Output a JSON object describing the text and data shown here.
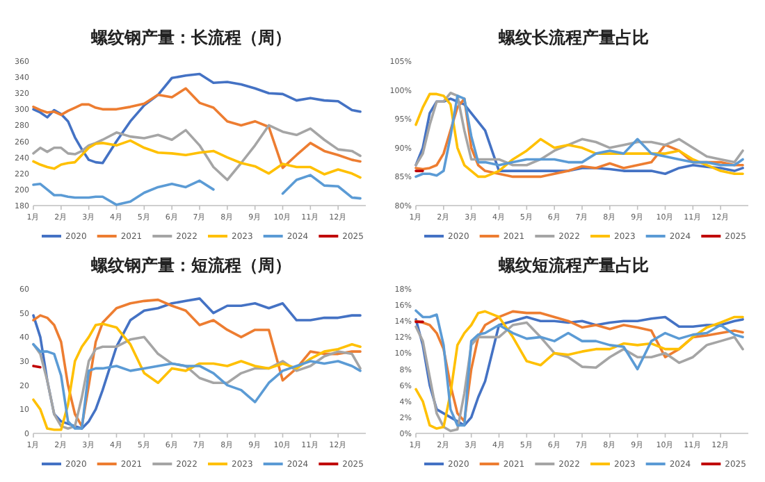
{
  "chart_data": [
    {
      "type": "line",
      "title": "螺纹钢产量：长流程（周）",
      "legend": "bottom",
      "x": [
        1,
        1.25,
        1.5,
        1.75,
        2,
        2.25,
        2.5,
        2.75,
        3,
        3.25,
        3.5,
        4,
        4.5,
        5,
        5.5,
        6,
        6.5,
        7,
        7.5,
        8,
        8.5,
        9,
        9.5,
        10,
        10.5,
        11,
        11.5,
        12,
        12.5,
        12.8
      ],
      "xlim": [
        1,
        13
      ],
      "xticks": [
        {
          "value": 1,
          "label": "1月"
        },
        {
          "value": 2,
          "label": "2月"
        },
        {
          "value": 3,
          "label": "3月"
        },
        {
          "value": 4,
          "label": "4月"
        },
        {
          "value": 5,
          "label": "5月"
        },
        {
          "value": 6,
          "label": "6月"
        },
        {
          "value": 7,
          "label": "7月"
        },
        {
          "value": 8,
          "label": "8月"
        },
        {
          "value": 9,
          "label": "9月"
        },
        {
          "value": 10,
          "label": "10月"
        },
        {
          "value": 11,
          "label": "11月"
        },
        {
          "value": 12,
          "label": "12月"
        }
      ],
      "ylim": [
        180,
        360
      ],
      "yticks": [
        180,
        200,
        220,
        240,
        260,
        280,
        300,
        320,
        340,
        360
      ],
      "series": [
        {
          "name": "2020",
          "color": "#4472c4",
          "values": [
            300,
            296,
            290,
            299,
            294,
            285,
            265,
            250,
            237,
            234,
            233,
            260,
            285,
            305,
            318,
            339,
            342,
            344,
            333,
            334,
            331,
            326,
            320,
            319,
            311,
            314,
            311,
            310,
            299,
            297
          ]
        },
        {
          "name": "2021",
          "color": "#ed7d31",
          "values": [
            303,
            299,
            296,
            297,
            293,
            298,
            302,
            306,
            306,
            302,
            300,
            300,
            303,
            307,
            318,
            315,
            326,
            308,
            302,
            285,
            280,
            285,
            278,
            227,
            243,
            258,
            248,
            243,
            237,
            235
          ]
        },
        {
          "name": "2022",
          "color": "#a5a5a5",
          "values": [
            245,
            252,
            247,
            252,
            252,
            245,
            244,
            248,
            255,
            258,
            262,
            271,
            266,
            264,
            268,
            262,
            274,
            255,
            228,
            212,
            233,
            255,
            280,
            272,
            268,
            276,
            262,
            250,
            248,
            242
          ]
        },
        {
          "name": "2023",
          "color": "#ffc000",
          "values": [
            235,
            231,
            228,
            226,
            231,
            233,
            234,
            243,
            252,
            257,
            258,
            255,
            261,
            252,
            246,
            245,
            243,
            246,
            248,
            240,
            233,
            229,
            220,
            232,
            228,
            228,
            219,
            225,
            220,
            215
          ]
        },
        {
          "name": "2024",
          "color": "#5b9bd5",
          "values": [
            206,
            207,
            200,
            193,
            193,
            191,
            190,
            190,
            190,
            191,
            191,
            181,
            185,
            196,
            203,
            207,
            203,
            211,
            200,
            null,
            null,
            null,
            null,
            195,
            212,
            218,
            205,
            204,
            190,
            189
          ]
        },
        {
          "name": "2025",
          "color": "#c00000",
          "values": [
            null,
            null,
            null,
            null,
            null,
            null,
            null,
            null,
            null,
            null,
            null,
            null,
            null,
            null,
            null,
            null,
            null,
            null,
            null,
            null,
            null,
            null,
            null,
            null,
            null,
            null,
            null,
            null,
            null,
            null
          ]
        }
      ]
    },
    {
      "type": "line",
      "title": "螺纹长流程产量占比",
      "legend": "bottom",
      "x": [
        1,
        1.25,
        1.5,
        1.75,
        2,
        2.25,
        2.5,
        2.75,
        3,
        3.25,
        3.5,
        4,
        4.5,
        5,
        5.5,
        6,
        6.5,
        7,
        7.5,
        8,
        8.5,
        9,
        9.5,
        10,
        10.5,
        11,
        11.5,
        12,
        12.5,
        12.8
      ],
      "xlim": [
        1,
        13
      ],
      "xticks": [
        {
          "value": 1,
          "label": "1月"
        },
        {
          "value": 2,
          "label": "2月"
        },
        {
          "value": 3,
          "label": "3月"
        },
        {
          "value": 4,
          "label": "4月"
        },
        {
          "value": 5,
          "label": "5月"
        },
        {
          "value": 6,
          "label": "6月"
        },
        {
          "value": 7,
          "label": "7月"
        },
        {
          "value": 8,
          "label": "8月"
        },
        {
          "value": 9,
          "label": "9月"
        },
        {
          "value": 10,
          "label": "10月"
        },
        {
          "value": 11,
          "label": "11月"
        },
        {
          "value": 12,
          "label": "12月"
        }
      ],
      "ylim": [
        80,
        105
      ],
      "yticks": [
        {
          "value": 80,
          "label": "80%"
        },
        {
          "value": 85,
          "label": "85%"
        },
        {
          "value": 90,
          "label": "90%"
        },
        {
          "value": 95,
          "label": "95%"
        },
        {
          "value": 100,
          "label": "100%"
        },
        {
          "value": 105,
          "label": "105%"
        }
      ],
      "series": [
        {
          "name": "2020",
          "color": "#4472c4",
          "values": [
            87,
            90,
            96,
            98,
            98,
            98.5,
            98,
            97.5,
            96,
            94.5,
            93,
            86,
            86,
            86,
            86,
            86,
            86,
            86.5,
            86.5,
            86.3,
            86,
            86,
            86,
            85.5,
            86.5,
            87,
            86.7,
            86.5,
            86,
            86.5
          ]
        },
        {
          "name": "2021",
          "color": "#ed7d31",
          "values": [
            86.5,
            86.3,
            86.5,
            87,
            89,
            93,
            97,
            98.5,
            90,
            87,
            86,
            85.5,
            85,
            85,
            85,
            85.5,
            86,
            86.8,
            86.5,
            87.3,
            86.5,
            87,
            87.5,
            90.5,
            89.5,
            87.5,
            87.5,
            87.5,
            87,
            87
          ]
        },
        {
          "name": "2022",
          "color": "#a5a5a5",
          "values": [
            87,
            89,
            94,
            98,
            98,
            99.5,
            99,
            93,
            88,
            88,
            88,
            88,
            87,
            87,
            88,
            89.5,
            90.5,
            91.5,
            91,
            90,
            90.5,
            91,
            91,
            90.5,
            91.5,
            90,
            88.5,
            88,
            87.5,
            89.5
          ]
        },
        {
          "name": "2023",
          "color": "#ffc000",
          "values": [
            94,
            97,
            99.3,
            99.3,
            99,
            97.5,
            90,
            87,
            86,
            85,
            85,
            86,
            88,
            89.5,
            91.5,
            90,
            90.5,
            90,
            89,
            89,
            89,
            89,
            89,
            89,
            89.5,
            88,
            87,
            86,
            85.5,
            85.5
          ]
        },
        {
          "name": "2024",
          "color": "#5b9bd5",
          "values": [
            85,
            85.5,
            85.5,
            85.2,
            86,
            92,
            99,
            98.5,
            92,
            87.5,
            87.5,
            87,
            87.5,
            88,
            88,
            88,
            87.5,
            87.5,
            89,
            89.5,
            89,
            91.5,
            89,
            88.5,
            88,
            87.5,
            87.5,
            87,
            87,
            88
          ]
        },
        {
          "name": "2025",
          "color": "#c00000",
          "values": [
            86,
            86,
            null,
            null,
            null,
            null,
            null,
            null,
            null,
            null,
            null,
            null,
            null,
            null,
            null,
            null,
            null,
            null,
            null,
            null,
            null,
            null,
            null,
            null,
            null,
            null,
            null,
            null,
            null,
            null
          ]
        }
      ]
    },
    {
      "type": "line",
      "title": "螺纹钢产量：短流程（周）",
      "legend": "bottom",
      "x": [
        1,
        1.25,
        1.5,
        1.75,
        2,
        2.25,
        2.5,
        2.75,
        3,
        3.25,
        3.5,
        4,
        4.5,
        5,
        5.5,
        6,
        6.5,
        7,
        7.5,
        8,
        8.5,
        9,
        9.5,
        10,
        10.5,
        11,
        11.5,
        12,
        12.5,
        12.8
      ],
      "xlim": [
        1,
        13
      ],
      "xticks": [
        {
          "value": 1,
          "label": "1月"
        },
        {
          "value": 2,
          "label": "2月"
        },
        {
          "value": 3,
          "label": "3月"
        },
        {
          "value": 4,
          "label": "4月"
        },
        {
          "value": 5,
          "label": "5月"
        },
        {
          "value": 6,
          "label": "6月"
        },
        {
          "value": 7,
          "label": "7月"
        },
        {
          "value": 8,
          "label": "8月"
        },
        {
          "value": 9,
          "label": "9月"
        },
        {
          "value": 10,
          "label": "10月"
        },
        {
          "value": 11,
          "label": "11月"
        },
        {
          "value": 12,
          "label": "12月"
        }
      ],
      "ylim": [
        0,
        60
      ],
      "yticks": [
        0,
        10,
        20,
        30,
        40,
        50,
        60
      ],
      "series": [
        {
          "name": "2020",
          "color": "#4472c4",
          "values": [
            49,
            40,
            22,
            8,
            5,
            4,
            3,
            2,
            5,
            10,
            18,
            36,
            47,
            51,
            52,
            54,
            55,
            56,
            50,
            53,
            53,
            54,
            52,
            54,
            47,
            47,
            48,
            48,
            49,
            49
          ]
        },
        {
          "name": "2021",
          "color": "#ed7d31",
          "values": [
            47,
            49,
            48,
            45,
            38,
            20,
            8,
            3,
            20,
            38,
            46,
            52,
            54,
            55,
            55.5,
            53,
            51,
            45,
            47,
            43,
            40,
            43,
            43,
            22,
            27,
            34,
            33,
            33,
            34,
            34
          ]
        },
        {
          "name": "2022",
          "color": "#a5a5a5",
          "values": [
            37,
            33,
            22,
            8,
            3,
            2,
            3,
            15,
            30,
            35,
            36,
            36,
            39,
            40,
            33,
            29,
            28,
            23,
            21,
            21,
            25,
            27,
            27,
            30,
            26,
            28,
            32,
            34,
            33,
            27
          ]
        },
        {
          "name": "2023",
          "color": "#ffc000",
          "values": [
            14,
            10,
            2,
            1.5,
            1.5,
            12,
            30,
            36,
            40,
            45,
            45.5,
            44,
            37,
            25,
            21,
            27,
            26,
            29,
            29,
            28,
            30,
            28,
            27,
            29,
            27,
            31,
            34,
            35,
            37,
            36
          ]
        },
        {
          "name": "2024",
          "color": "#5b9bd5",
          "values": [
            37,
            34,
            34,
            33,
            24,
            5,
            2,
            2,
            26,
            27,
            27,
            28,
            26,
            27,
            28,
            29,
            28,
            28,
            25,
            20,
            18,
            13,
            21,
            26,
            28,
            30,
            29,
            30,
            28,
            26
          ]
        },
        {
          "name": "2025",
          "color": "#c00000",
          "values": [
            28,
            27.5,
            null,
            null,
            null,
            null,
            null,
            null,
            null,
            null,
            null,
            null,
            null,
            null,
            null,
            null,
            null,
            null,
            null,
            null,
            null,
            null,
            null,
            null,
            null,
            null,
            null,
            null,
            null,
            null
          ]
        }
      ]
    },
    {
      "type": "line",
      "title": "螺纹短流程产量占比",
      "legend": "bottom",
      "x": [
        1,
        1.25,
        1.5,
        1.75,
        2,
        2.25,
        2.5,
        2.75,
        3,
        3.25,
        3.5,
        4,
        4.5,
        5,
        5.5,
        6,
        6.5,
        7,
        7.5,
        8,
        8.5,
        9,
        9.5,
        10,
        10.5,
        11,
        11.5,
        12,
        12.5,
        12.8
      ],
      "xlim": [
        1,
        13
      ],
      "xticks": [
        {
          "value": 1,
          "label": "1月"
        },
        {
          "value": 2,
          "label": "2月"
        },
        {
          "value": 3,
          "label": "3月"
        },
        {
          "value": 4,
          "label": "4月"
        },
        {
          "value": 5,
          "label": "5月"
        },
        {
          "value": 6,
          "label": "6月"
        },
        {
          "value": 7,
          "label": "7月"
        },
        {
          "value": 8,
          "label": "8月"
        },
        {
          "value": 9,
          "label": "9月"
        },
        {
          "value": 10,
          "label": "10月"
        },
        {
          "value": 11,
          "label": "11月"
        },
        {
          "value": 12,
          "label": "12月"
        }
      ],
      "ylim": [
        0,
        18
      ],
      "yticks": [
        {
          "value": 0,
          "label": "0%"
        },
        {
          "value": 2,
          "label": "2%"
        },
        {
          "value": 4,
          "label": "4%"
        },
        {
          "value": 6,
          "label": "6%"
        },
        {
          "value": 8,
          "label": "8%"
        },
        {
          "value": 10,
          "label": "10%"
        },
        {
          "value": 12,
          "label": "12%"
        },
        {
          "value": 14,
          "label": "14%"
        },
        {
          "value": 16,
          "label": "16%"
        },
        {
          "value": 18,
          "label": "18%"
        }
      ],
      "series": [
        {
          "name": "2020",
          "color": "#4472c4",
          "values": [
            14.2,
            11,
            6,
            3,
            2.5,
            2,
            1.5,
            1,
            2,
            4.5,
            6.5,
            13.5,
            14,
            14.5,
            14,
            14,
            13.8,
            14,
            13.5,
            13.8,
            14,
            14,
            14.3,
            14.5,
            13.3,
            13.3,
            13.5,
            13.5,
            14,
            14.2
          ]
        },
        {
          "name": "2021",
          "color": "#ed7d31",
          "values": [
            14,
            13.8,
            13.5,
            12.5,
            10.5,
            6,
            2.5,
            1.5,
            8,
            12,
            13.5,
            14.5,
            15.2,
            15,
            15,
            14.5,
            14,
            13.2,
            13.5,
            13,
            13.5,
            13.2,
            12.8,
            9.5,
            10.5,
            12,
            12.2,
            12.5,
            12.8,
            12.6
          ]
        },
        {
          "name": "2022",
          "color": "#a5a5a5",
          "values": [
            13.3,
            11.5,
            7,
            2.5,
            0.8,
            0.3,
            0.5,
            5,
            11,
            12,
            12,
            12,
            13.5,
            13.8,
            12,
            10,
            9.5,
            8.3,
            8.2,
            9.5,
            10.5,
            9.5,
            9.5,
            10,
            8.8,
            9.5,
            11,
            11.5,
            12,
            10.5
          ]
        },
        {
          "name": "2023",
          "color": "#ffc000",
          "values": [
            5.5,
            4,
            1,
            0.6,
            0.8,
            5,
            11,
            12.5,
            13.5,
            15,
            15.2,
            14.5,
            12,
            9,
            8.5,
            10,
            9.8,
            10.2,
            10.5,
            10.5,
            11.2,
            11,
            11.2,
            10.5,
            10.5,
            12,
            13.2,
            13.8,
            14.5,
            14.5
          ]
        },
        {
          "name": "2024",
          "color": "#5b9bd5",
          "values": [
            15.3,
            14.5,
            14.5,
            14.8,
            11,
            3,
            1,
            1,
            11.5,
            12.3,
            12.5,
            13.5,
            12.5,
            11.8,
            12,
            11.5,
            12.5,
            11.5,
            11.5,
            11,
            10.8,
            8,
            11.5,
            12.5,
            11.8,
            12.3,
            12.5,
            13.5,
            12.3,
            12
          ]
        },
        {
          "name": "2025",
          "color": "#c00000",
          "values": [
            13.9,
            13.9,
            null,
            null,
            null,
            null,
            null,
            null,
            null,
            null,
            null,
            null,
            null,
            null,
            null,
            null,
            null,
            null,
            null,
            null,
            null,
            null,
            null,
            null,
            null,
            null,
            null,
            null,
            null,
            null
          ]
        }
      ]
    }
  ]
}
